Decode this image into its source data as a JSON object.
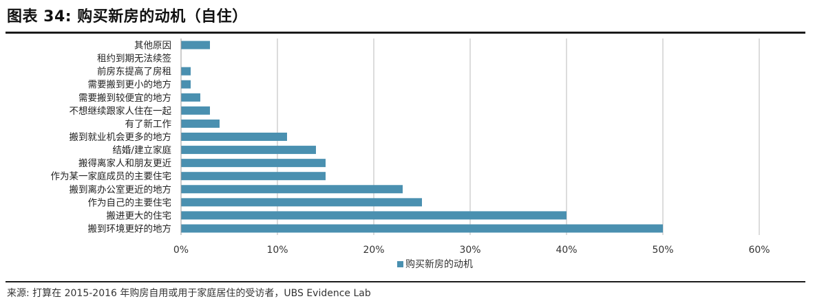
{
  "title": "图表 34: 购买新房的动机（自住）",
  "footer": "来源: 打算在 2015-2016 年购房自用或用于家庭居住的受访者，UBS Evidence Lab",
  "chart_data": {
    "type": "bar",
    "orientation": "horizontal",
    "categories": [
      "其他原因",
      "租约到期无法续签",
      "前房东提高了房租",
      "需要搬到更小的地方",
      "需要搬到较便宜的地方",
      "不想继续跟家人住在一起",
      "有了新工作",
      "搬到就业机会更多的地方",
      "结婚/建立家庭",
      "搬得离家人和朋友更近",
      "作为某一家庭成员的主要住宅",
      "搬到离办公室更近的地方",
      "作为自己的主要住宅",
      "搬进更大的住宅",
      "搬到环境更好的地方"
    ],
    "series": [
      {
        "name": "购买新房的动机",
        "values": [
          3,
          0,
          1,
          1,
          2,
          3,
          4,
          11,
          14,
          15,
          15,
          23,
          25,
          40,
          50
        ]
      }
    ],
    "xlim": [
      0,
      60
    ],
    "ticks": [
      "0%",
      "10%",
      "20%",
      "30%",
      "40%",
      "50%",
      "60%"
    ],
    "grid": true,
    "legend": "bottom-center",
    "bar_color": "#4a90b0"
  }
}
